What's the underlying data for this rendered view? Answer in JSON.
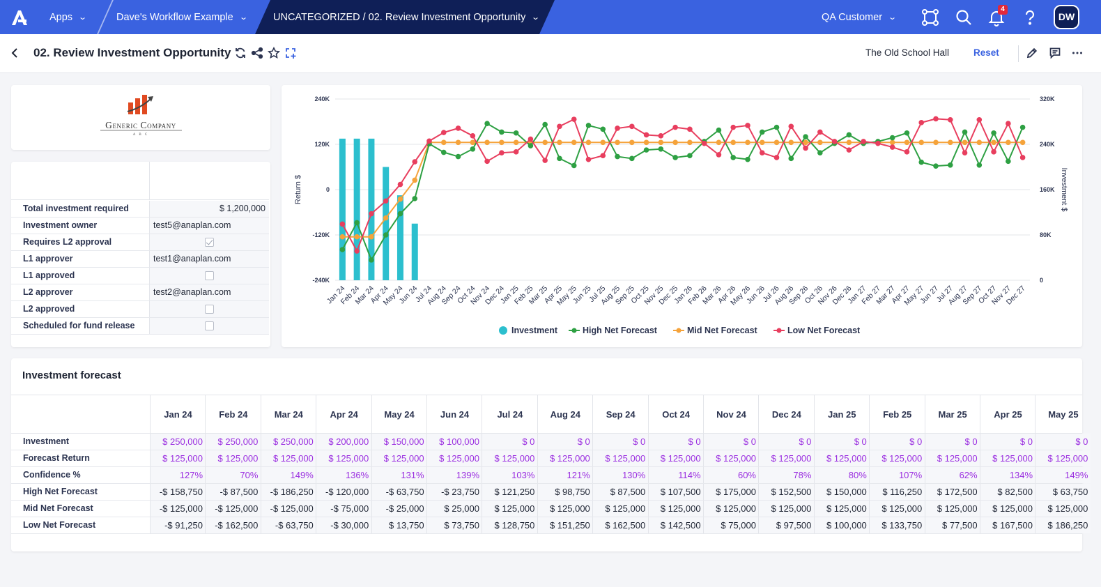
{
  "topbar": {
    "apps_label": "Apps",
    "workflow_label": "Dave's Workflow Example",
    "page_path_label": "UNCATEGORIZED / 02. Review Investment Opportunity",
    "customer_label": "QA Customer",
    "notification_count": "4",
    "avatar_initials": "DW",
    "colors": {
      "bar": "#3a62e0",
      "active_crumb": "#0f1f57",
      "badge": "#e2283a"
    }
  },
  "pagebar": {
    "title": "02. Review Investment Opportunity",
    "context_label": "The Old School Hall",
    "reset_label": "Reset"
  },
  "logo_card": {
    "company_name": "Generic Company",
    "company_sub": "A B C"
  },
  "details": {
    "rows": [
      {
        "label": "Total investment required",
        "value": "$ 1,200,000",
        "kind": "text",
        "align": "right"
      },
      {
        "label": "Investment owner",
        "value": "test5@anaplan.com",
        "kind": "text",
        "align": "left"
      },
      {
        "label": "Requires L2 approval",
        "checked": true,
        "kind": "checkbox"
      },
      {
        "label": "L1 approver",
        "value": "test1@anaplan.com",
        "kind": "text",
        "align": "left"
      },
      {
        "label": "L1 approved",
        "checked": false,
        "kind": "checkbox"
      },
      {
        "label": "L2 approver",
        "value": "test2@anaplan.com",
        "kind": "text",
        "align": "left"
      },
      {
        "label": "L2 approved",
        "checked": false,
        "kind": "checkbox"
      },
      {
        "label": "Scheduled for fund release",
        "checked": false,
        "kind": "checkbox"
      }
    ]
  },
  "chart_data": {
    "type": "bar",
    "ylabel": "Return $",
    "y2label": "Investment $",
    "ylim": [
      -240000,
      240000
    ],
    "y2lim": [
      0,
      320000
    ],
    "y_ticks": [
      "240K",
      "120K",
      "0",
      "-120K",
      "-240K"
    ],
    "y2_ticks": [
      "320K",
      "240K",
      "160K",
      "80K",
      "0"
    ],
    "grid": true,
    "legend_position": "bottom",
    "categories": [
      "Jan 24",
      "Feb 24",
      "Mar 24",
      "Apr 24",
      "May 24",
      "Jun 24",
      "Jul 24",
      "Aug 24",
      "Sep 24",
      "Oct 24",
      "Nov 24",
      "Dec 24",
      "Jan 25",
      "Feb 25",
      "Mar 25",
      "Apr 25",
      "May 25",
      "Jun 25",
      "Jul 25",
      "Aug 25",
      "Sep 25",
      "Oct 25",
      "Nov 25",
      "Dec 25",
      "Jan 26",
      "Feb 26",
      "Mar 26",
      "Apr 26",
      "May 26",
      "Jun 26",
      "Jul 26",
      "Aug 26",
      "Sep 26",
      "Oct 26",
      "Nov 26",
      "Dec 26",
      "Jan 27",
      "Feb 27",
      "Mar 27",
      "Apr 27",
      "May 27",
      "Jun 27",
      "Jul 27",
      "Aug 27",
      "Sep 27",
      "Oct 27",
      "Nov 27",
      "Dec 27"
    ],
    "series": [
      {
        "name": "Investment",
        "type": "bar",
        "axis": "right",
        "color": "#2cbfce",
        "values": [
          250000,
          250000,
          250000,
          200000,
          150000,
          100000,
          0,
          0,
          0,
          0,
          0,
          0,
          0,
          0,
          0,
          0,
          0,
          0,
          0,
          0,
          0,
          0,
          0,
          0,
          0,
          0,
          0,
          0,
          0,
          0,
          0,
          0,
          0,
          0,
          0,
          0,
          0,
          0,
          0,
          0,
          0,
          0,
          0,
          0,
          0,
          0,
          0,
          0
        ]
      },
      {
        "name": "High Net Forecast",
        "type": "line",
        "axis": "left",
        "color": "#2ea043",
        "values": [
          -158750,
          -87500,
          -186250,
          -120000,
          -63750,
          -23750,
          121250,
          98750,
          87500,
          107500,
          175000,
          152500,
          150000,
          116250,
          172500,
          82500,
          63750,
          170000,
          160000,
          87500,
          82500,
          105000,
          107500,
          85000,
          90000,
          127500,
          157500,
          85000,
          80000,
          152500,
          165000,
          82500,
          140000,
          97500,
          122500,
          145000,
          122500,
          127500,
          137500,
          150000,
          72500,
          62500,
          65000,
          152500,
          65000,
          150000,
          75000,
          165000
        ]
      },
      {
        "name": "Mid Net Forecast",
        "type": "line",
        "axis": "left",
        "color": "#f5a33b",
        "values": [
          -125000,
          -125000,
          -125000,
          -75000,
          -25000,
          25000,
          125000,
          125000,
          125000,
          125000,
          125000,
          125000,
          125000,
          125000,
          125000,
          125000,
          125000,
          125000,
          125000,
          125000,
          125000,
          125000,
          125000,
          125000,
          125000,
          125000,
          125000,
          125000,
          125000,
          125000,
          125000,
          125000,
          125000,
          125000,
          125000,
          125000,
          125000,
          125000,
          125000,
          125000,
          125000,
          125000,
          125000,
          125000,
          125000,
          125000,
          125000,
          125000
        ]
      },
      {
        "name": "Low Net Forecast",
        "type": "line",
        "axis": "left",
        "color": "#e83e5e",
        "values": [
          -91250,
          -162500,
          -63750,
          -30000,
          13750,
          73750,
          128750,
          151250,
          162500,
          142500,
          75000,
          97500,
          100000,
          133750,
          77500,
          167500,
          186250,
          80000,
          90000,
          162500,
          167500,
          145000,
          142500,
          165000,
          160000,
          122500,
          92500,
          165000,
          170000,
          97500,
          85000,
          167500,
          110000,
          152500,
          127500,
          105000,
          127500,
          122500,
          112500,
          100000,
          177500,
          187500,
          185000,
          97500,
          185000,
          100000,
          175000,
          85000
        ]
      }
    ]
  },
  "forecast_table": {
    "title": "Investment forecast",
    "columns": [
      "Jan 24",
      "Feb 24",
      "Mar 24",
      "Apr 24",
      "May 24",
      "Jun 24",
      "Jul 24",
      "Aug 24",
      "Sep 24",
      "Oct 24",
      "Nov 24",
      "Dec 24",
      "Jan 25",
      "Feb 25",
      "Mar 25",
      "Apr 25",
      "May 25"
    ],
    "rows": [
      {
        "label": "Investment",
        "color": "purple",
        "cells": [
          "$ 250,000",
          "$ 250,000",
          "$ 250,000",
          "$ 200,000",
          "$ 150,000",
          "$ 100,000",
          "$ 0",
          "$ 0",
          "$ 0",
          "$ 0",
          "$ 0",
          "$ 0",
          "$ 0",
          "$ 0",
          "$ 0",
          "$ 0",
          "$ 0"
        ]
      },
      {
        "label": "Forecast Return",
        "color": "purple",
        "cells": [
          "$ 125,000",
          "$ 125,000",
          "$ 125,000",
          "$ 125,000",
          "$ 125,000",
          "$ 125,000",
          "$ 125,000",
          "$ 125,000",
          "$ 125,000",
          "$ 125,000",
          "$ 125,000",
          "$ 125,000",
          "$ 125,000",
          "$ 125,000",
          "$ 125,000",
          "$ 125,000",
          "$ 125,000"
        ]
      },
      {
        "label": "Confidence %",
        "color": "purple",
        "cells": [
          "127%",
          "70%",
          "149%",
          "136%",
          "131%",
          "139%",
          "103%",
          "121%",
          "130%",
          "114%",
          "60%",
          "78%",
          "80%",
          "107%",
          "62%",
          "134%",
          "149%"
        ]
      },
      {
        "label": "High Net Forecast",
        "color": "dark",
        "cells": [
          "-$ 158,750",
          "-$ 87,500",
          "-$ 186,250",
          "-$ 120,000",
          "-$ 63,750",
          "-$ 23,750",
          "$ 121,250",
          "$ 98,750",
          "$ 87,500",
          "$ 107,500",
          "$ 175,000",
          "$ 152,500",
          "$ 150,000",
          "$ 116,250",
          "$ 172,500",
          "$ 82,500",
          "$ 63,750"
        ]
      },
      {
        "label": "Mid Net Forecast",
        "color": "dark",
        "cells": [
          "-$ 125,000",
          "-$ 125,000",
          "-$ 125,000",
          "-$ 75,000",
          "-$ 25,000",
          "$ 25,000",
          "$ 125,000",
          "$ 125,000",
          "$ 125,000",
          "$ 125,000",
          "$ 125,000",
          "$ 125,000",
          "$ 125,000",
          "$ 125,000",
          "$ 125,000",
          "$ 125,000",
          "$ 125,000"
        ]
      },
      {
        "label": "Low Net Forecast",
        "color": "dark",
        "cells": [
          "-$ 91,250",
          "-$ 162,500",
          "-$ 63,750",
          "-$ 30,000",
          "$ 13,750",
          "$ 73,750",
          "$ 128,750",
          "$ 151,250",
          "$ 162,500",
          "$ 142,500",
          "$ 75,000",
          "$ 97,500",
          "$ 100,000",
          "$ 133,750",
          "$ 77,500",
          "$ 167,500",
          "$ 186,250"
        ]
      }
    ]
  }
}
